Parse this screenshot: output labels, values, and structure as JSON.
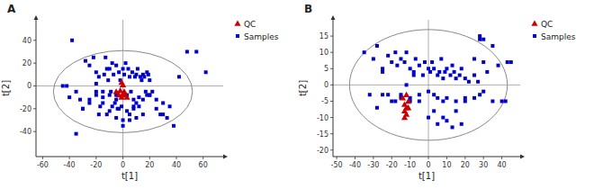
{
  "chart_data": [
    {
      "type": "scatter",
      "title": "A",
      "x_label": "t[1]",
      "y_label": "t[2]",
      "series": [
        {
          "name": "Samples",
          "color": "#0000CC",
          "marker": "square",
          "x": [
            -45,
            -38,
            -32,
            -28,
            -25,
            -22,
            -20,
            -18,
            -17,
            -15,
            -14,
            -13,
            -12,
            -11,
            -10,
            -9,
            -8,
            -7,
            -6,
            -5,
            -4,
            -3,
            -2,
            -1,
            0,
            1,
            2,
            3,
            4,
            5,
            6,
            7,
            8,
            9,
            10,
            11,
            12,
            13,
            14,
            15,
            16,
            17,
            18,
            19,
            20,
            22,
            25,
            28,
            30,
            33,
            38,
            42,
            48,
            55,
            62,
            -40,
            -35,
            -30,
            -25,
            -20,
            -18,
            -15,
            -12,
            -10,
            -8,
            -5,
            -3,
            0,
            3,
            5,
            8,
            10,
            12,
            15,
            18,
            -20,
            -15,
            -10,
            -5,
            0,
            5,
            10,
            15,
            20,
            25,
            30,
            35,
            -25,
            -30,
            -35,
            -42,
            -20,
            -5,
            8,
            20
          ],
          "values": [
            0,
            40,
            -12,
            22,
            18,
            25,
            12,
            8,
            -18,
            -5,
            10,
            25,
            15,
            5,
            15,
            -5,
            20,
            10,
            -15,
            18,
            -20,
            12,
            5,
            -18,
            15,
            10,
            20,
            -8,
            15,
            8,
            -5,
            12,
            -20,
            8,
            10,
            15,
            -18,
            8,
            5,
            10,
            8,
            -5,
            12,
            10,
            -8,
            -5,
            -20,
            -25,
            -25,
            -28,
            -35,
            8,
            30,
            30,
            12,
            -10,
            -5,
            -20,
            -12,
            -8,
            -25,
            -15,
            -25,
            -22,
            -18,
            -28,
            -20,
            -30,
            -22,
            -25,
            -18,
            -15,
            -10,
            -12,
            -8,
            -5,
            -10,
            -8,
            -12,
            -35,
            -30,
            -28,
            -25,
            -8,
            -12,
            -15,
            -18,
            -15,
            -20,
            -42,
            0,
            2,
            -8,
            -12,
            5
          ]
        },
        {
          "name": "QC",
          "color": "#CC0000",
          "marker": "triangle",
          "x": [
            -5,
            -3,
            -2,
            -1,
            0,
            1,
            2,
            3,
            -1,
            0
          ],
          "values": [
            -5,
            -8,
            -4,
            -10,
            -7,
            -5,
            -8,
            -10,
            3,
            1
          ]
        }
      ],
      "xlim": [
        -65,
        75
      ],
      "ylim": [
        -62,
        58
      ],
      "xticks": [
        -60,
        -40,
        -20,
        0,
        20,
        40,
        60
      ],
      "yticks": [
        -40,
        -20,
        0,
        20,
        40
      ],
      "hlines": [
        0
      ],
      "vlines": [
        0
      ],
      "ellipse": {
        "cx": 0,
        "cy": -5,
        "rx": 52,
        "ry": 36
      },
      "legend": "upper right"
    },
    {
      "type": "scatter",
      "title": "B",
      "x_label": "t[1]",
      "y_label": "t[2]",
      "series": [
        {
          "name": "Samples",
          "color": "#0000CC",
          "marker": "square",
          "x": [
            -35,
            -30,
            -28,
            -25,
            -22,
            -20,
            -18,
            -17,
            -15,
            -13,
            -12,
            -10,
            -8,
            -7,
            -5,
            -3,
            -2,
            0,
            1,
            2,
            3,
            5,
            6,
            7,
            8,
            9,
            10,
            12,
            13,
            14,
            15,
            17,
            18,
            20,
            22,
            25,
            27,
            28,
            30,
            32,
            35,
            38,
            42,
            45,
            -25,
            -22,
            -18,
            -15,
            -12,
            -10,
            -8,
            -5,
            0,
            3,
            5,
            8,
            10,
            13,
            15,
            18,
            20,
            25,
            28,
            30,
            -32,
            -28,
            -25,
            -20,
            -15,
            -10,
            -5,
            0,
            3,
            5,
            8,
            10,
            15,
            20,
            25,
            28,
            30,
            35,
            40,
            43
          ],
          "values": [
            10,
            8,
            12,
            5,
            9,
            7,
            10,
            6,
            8,
            7,
            10,
            5,
            4,
            8,
            6,
            3,
            7,
            5,
            4,
            7,
            5,
            3,
            4,
            8,
            2,
            4,
            5,
            3,
            6,
            4,
            2,
            3,
            5,
            2,
            1,
            3,
            1,
            -3,
            -2,
            4,
            -5,
            6,
            -5,
            7,
            4,
            -3,
            -5,
            -4,
            0,
            -5,
            3,
            -5,
            -10,
            -8,
            -12,
            -10,
            -11,
            -13,
            -8,
            -12,
            -5,
            8,
            14,
            7,
            -3,
            -7,
            -3,
            -5,
            -3,
            -4,
            -3,
            -2,
            -3,
            -4,
            -5,
            -4,
            -5,
            -4,
            -4,
            15,
            14,
            12,
            -5,
            7
          ]
        },
        {
          "name": "QC",
          "color": "#CC0000",
          "marker": "triangle",
          "x": [
            -14,
            -13,
            -12,
            -11,
            -13,
            -12,
            -11,
            -12,
            -13
          ],
          "values": [
            -4,
            -6,
            -7,
            -5,
            -8,
            -9,
            -7,
            -3,
            -10
          ]
        }
      ],
      "xlim": [
        -52,
        50
      ],
      "ylim": [
        -22,
        20
      ],
      "xticks": [
        -50,
        -40,
        -30,
        -20,
        -10,
        0,
        10,
        20,
        30,
        40
      ],
      "yticks": [
        -20,
        -15,
        -10,
        -5,
        0,
        5,
        10,
        15
      ],
      "hlines": [
        0
      ],
      "vlines": [
        0
      ],
      "ellipse": {
        "cx": 0,
        "cy": 0,
        "rx": 43,
        "ry": 17
      },
      "legend": "upper right"
    }
  ]
}
